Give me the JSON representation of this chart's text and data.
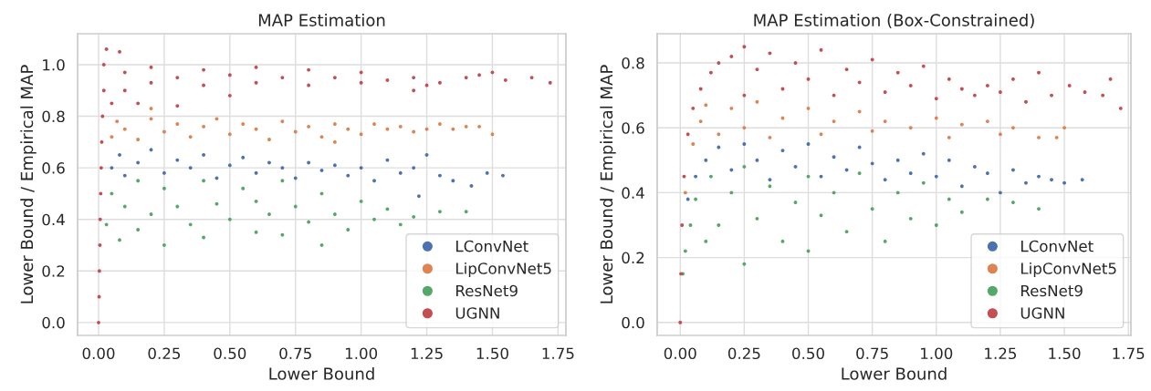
{
  "chart_data": [
    {
      "type": "scatter",
      "title": "MAP Estimation",
      "xlabel": "Lower Bound",
      "ylabel": "Lower Bound / Empirical MAP",
      "marker": "circle",
      "grid": true,
      "legend": "bottom right",
      "xlim": [
        -0.08,
        1.78
      ],
      "ylim": [
        -0.05,
        1.12
      ],
      "xticks": [
        {
          "value": 0,
          "label": "0.00"
        },
        {
          "value": 0.25,
          "label": "0.25"
        },
        {
          "value": 0.5,
          "label": "0.50"
        },
        {
          "value": 0.75,
          "label": "0.75"
        },
        {
          "value": 1,
          "label": "1.00"
        },
        {
          "value": 1.25,
          "label": "1.25"
        },
        {
          "value": 1.5,
          "label": "1.50"
        },
        {
          "value": 1.75,
          "label": "1.75"
        }
      ],
      "yticks": [
        {
          "value": 0,
          "label": "0.0"
        },
        {
          "value": 0.2,
          "label": "0.2"
        },
        {
          "value": 0.4,
          "label": "0.4"
        },
        {
          "value": 0.6,
          "label": "0.6"
        },
        {
          "value": 0.8,
          "label": "0.8"
        },
        {
          "value": 1,
          "label": "1.0"
        }
      ],
      "series": [
        {
          "name": "LConvNet",
          "color": "#4c72b0",
          "x": [
            0.05,
            0.08,
            0.1,
            0.15,
            0.2,
            0.25,
            0.3,
            0.35,
            0.4,
            0.45,
            0.5,
            0.55,
            0.6,
            0.65,
            0.7,
            0.75,
            0.8,
            0.85,
            0.9,
            0.95,
            1.0,
            1.05,
            1.1,
            1.15,
            1.2,
            1.25,
            1.3,
            1.35,
            1.42,
            1.48,
            1.54,
            1.22
          ],
          "values": [
            0.6,
            0.65,
            0.57,
            0.62,
            0.67,
            0.58,
            0.63,
            0.6,
            0.65,
            0.56,
            0.61,
            0.64,
            0.58,
            0.62,
            0.6,
            0.56,
            0.62,
            0.59,
            0.61,
            0.57,
            0.6,
            0.55,
            0.63,
            0.58,
            0.6,
            0.65,
            0.57,
            0.55,
            0.53,
            0.58,
            0.57,
            0.49
          ]
        },
        {
          "name": "LipConvNet5",
          "color": "#dd8452",
          "x": [
            0.05,
            0.07,
            0.1,
            0.15,
            0.2,
            0.25,
            0.3,
            0.35,
            0.4,
            0.45,
            0.5,
            0.55,
            0.6,
            0.65,
            0.7,
            0.75,
            0.8,
            0.85,
            0.9,
            0.95,
            1.0,
            1.05,
            1.1,
            1.15,
            1.2,
            1.25,
            1.3,
            1.35,
            1.4,
            1.45,
            1.5,
            0.2,
            0.9
          ],
          "values": [
            0.72,
            0.78,
            0.75,
            0.71,
            0.79,
            0.74,
            0.77,
            0.72,
            0.76,
            0.79,
            0.73,
            0.77,
            0.75,
            0.71,
            0.78,
            0.74,
            0.76,
            0.72,
            0.77,
            0.75,
            0.73,
            0.77,
            0.75,
            0.76,
            0.74,
            0.75,
            0.77,
            0.75,
            0.76,
            0.76,
            0.73,
            0.83,
            0.7
          ]
        },
        {
          "name": "ResNet9",
          "color": "#55a868",
          "x": [
            0.03,
            0.05,
            0.08,
            0.1,
            0.15,
            0.15,
            0.2,
            0.25,
            0.25,
            0.3,
            0.35,
            0.4,
            0.4,
            0.45,
            0.5,
            0.55,
            0.6,
            0.6,
            0.65,
            0.7,
            0.7,
            0.75,
            0.8,
            0.85,
            0.85,
            0.9,
            0.95,
            1.0,
            1.05,
            1.1,
            1.15,
            1.2,
            1.3,
            1.4
          ],
          "values": [
            0.38,
            0.5,
            0.32,
            0.45,
            0.55,
            0.36,
            0.42,
            0.3,
            0.52,
            0.45,
            0.38,
            0.55,
            0.33,
            0.46,
            0.4,
            0.52,
            0.35,
            0.47,
            0.42,
            0.55,
            0.34,
            0.45,
            0.39,
            0.5,
            0.3,
            0.42,
            0.36,
            0.47,
            0.4,
            0.44,
            0.38,
            0.41,
            0.43,
            0.43
          ]
        },
        {
          "name": "UGNN",
          "color": "#c44e52",
          "x": [
            0.0,
            0.002,
            0.003,
            0.005,
            0.006,
            0.008,
            0.01,
            0.012,
            0.015,
            0.02,
            0.02,
            0.03,
            0.08,
            0.05,
            0.1,
            0.1,
            0.2,
            0.2,
            0.3,
            0.4,
            0.4,
            0.5,
            0.6,
            0.6,
            0.7,
            0.8,
            0.8,
            0.9,
            1.0,
            1.0,
            1.1,
            1.2,
            1.25,
            1.3,
            1.4,
            1.45,
            1.5,
            1.55,
            1.65,
            1.72,
            0.15,
            0.3,
            0.5,
            1.2
          ],
          "values": [
            0.0,
            0.1,
            0.2,
            0.3,
            0.4,
            0.5,
            0.6,
            0.7,
            0.8,
            0.9,
            1.0,
            1.06,
            1.05,
            0.85,
            0.9,
            0.97,
            0.93,
            0.99,
            0.95,
            0.92,
            0.98,
            0.96,
            0.93,
            0.99,
            0.95,
            0.92,
            0.98,
            0.95,
            0.93,
            0.97,
            0.94,
            0.95,
            0.92,
            0.93,
            0.95,
            0.96,
            0.97,
            0.94,
            0.95,
            0.93,
            0.85,
            0.84,
            0.88,
            0.9
          ]
        }
      ]
    },
    {
      "type": "scatter",
      "title": "MAP Estimation (Box-Constrained)",
      "xlabel": "Lower Bound",
      "ylabel": "Lower Bound / Empirical MAP",
      "marker": "circle",
      "grid": true,
      "legend": "bottom right",
      "xlim": [
        -0.09,
        1.76
      ],
      "ylim": [
        -0.04,
        0.89
      ],
      "xticks": [
        {
          "value": 0,
          "label": "0.00"
        },
        {
          "value": 0.25,
          "label": "0.25"
        },
        {
          "value": 0.5,
          "label": "0.50"
        },
        {
          "value": 0.75,
          "label": "0.75"
        },
        {
          "value": 1,
          "label": "1.00"
        },
        {
          "value": 1.25,
          "label": "1.25"
        },
        {
          "value": 1.5,
          "label": "1.50"
        },
        {
          "value": 1.75,
          "label": "1.75"
        }
      ],
      "yticks": [
        {
          "value": 0,
          "label": "0.0"
        },
        {
          "value": 0.2,
          "label": "0.2"
        },
        {
          "value": 0.4,
          "label": "0.4"
        },
        {
          "value": 0.6,
          "label": "0.6"
        },
        {
          "value": 0.8,
          "label": "0.8"
        }
      ],
      "series": [
        {
          "name": "LConvNet",
          "color": "#4c72b0",
          "x": [
            0.03,
            0.06,
            0.1,
            0.15,
            0.2,
            0.25,
            0.3,
            0.35,
            0.4,
            0.45,
            0.5,
            0.55,
            0.6,
            0.65,
            0.7,
            0.75,
            0.8,
            0.85,
            0.9,
            0.95,
            1.0,
            1.05,
            1.1,
            1.15,
            1.2,
            1.25,
            1.3,
            1.35,
            1.4,
            1.45,
            1.5,
            1.57
          ],
          "values": [
            0.38,
            0.45,
            0.5,
            0.54,
            0.47,
            0.55,
            0.5,
            0.44,
            0.53,
            0.48,
            0.55,
            0.45,
            0.51,
            0.47,
            0.54,
            0.49,
            0.44,
            0.5,
            0.46,
            0.52,
            0.45,
            0.5,
            0.42,
            0.48,
            0.46,
            0.4,
            0.47,
            0.43,
            0.45,
            0.44,
            0.43,
            0.44
          ]
        },
        {
          "name": "LipConvNet5",
          "color": "#dd8452",
          "x": [
            0.02,
            0.05,
            0.08,
            0.1,
            0.15,
            0.2,
            0.25,
            0.3,
            0.35,
            0.4,
            0.5,
            0.55,
            0.6,
            0.7,
            0.75,
            0.8,
            0.9,
            1.0,
            1.05,
            1.1,
            1.2,
            1.25,
            1.3,
            1.4,
            1.47,
            1.5
          ],
          "values": [
            0.4,
            0.55,
            0.62,
            0.67,
            0.58,
            0.66,
            0.6,
            0.68,
            0.57,
            0.63,
            0.66,
            0.58,
            0.62,
            0.65,
            0.59,
            0.62,
            0.6,
            0.63,
            0.57,
            0.61,
            0.62,
            0.58,
            0.6,
            0.57,
            0.57,
            0.6
          ]
        },
        {
          "name": "ResNet9",
          "color": "#55a868",
          "x": [
            0.01,
            0.02,
            0.04,
            0.06,
            0.1,
            0.12,
            0.15,
            0.2,
            0.25,
            0.25,
            0.3,
            0.35,
            0.4,
            0.45,
            0.5,
            0.5,
            0.55,
            0.6,
            0.65,
            0.7,
            0.75,
            0.8,
            0.85,
            0.9,
            0.95,
            1.0,
            1.05,
            1.1,
            1.2,
            1.3,
            1.4
          ],
          "values": [
            0.15,
            0.22,
            0.3,
            0.38,
            0.25,
            0.45,
            0.3,
            0.4,
            0.18,
            0.48,
            0.32,
            0.42,
            0.25,
            0.37,
            0.45,
            0.22,
            0.33,
            0.4,
            0.28,
            0.46,
            0.35,
            0.25,
            0.4,
            0.32,
            0.43,
            0.3,
            0.38,
            0.34,
            0.38,
            0.37,
            0.35
          ]
        },
        {
          "name": "UGNN",
          "color": "#c44e52",
          "x": [
            0.0,
            0.003,
            0.007,
            0.015,
            0.03,
            0.05,
            0.08,
            0.12,
            0.15,
            0.2,
            0.25,
            0.25,
            0.3,
            0.35,
            0.4,
            0.45,
            0.5,
            0.55,
            0.6,
            0.65,
            0.7,
            0.75,
            0.8,
            0.85,
            0.9,
            0.95,
            1.0,
            1.05,
            1.1,
            1.15,
            1.2,
            1.25,
            1.3,
            1.35,
            1.4,
            1.45,
            1.52,
            1.58,
            1.65,
            1.68,
            1.72
          ],
          "values": [
            0.0,
            0.15,
            0.3,
            0.45,
            0.58,
            0.66,
            0.72,
            0.77,
            0.8,
            0.82,
            0.85,
            0.7,
            0.78,
            0.83,
            0.72,
            0.8,
            0.75,
            0.84,
            0.7,
            0.78,
            0.74,
            0.81,
            0.71,
            0.77,
            0.73,
            0.79,
            0.69,
            0.75,
            0.72,
            0.7,
            0.73,
            0.71,
            0.75,
            0.68,
            0.77,
            0.7,
            0.73,
            0.71,
            0.7,
            0.75,
            0.66
          ]
        }
      ]
    }
  ]
}
